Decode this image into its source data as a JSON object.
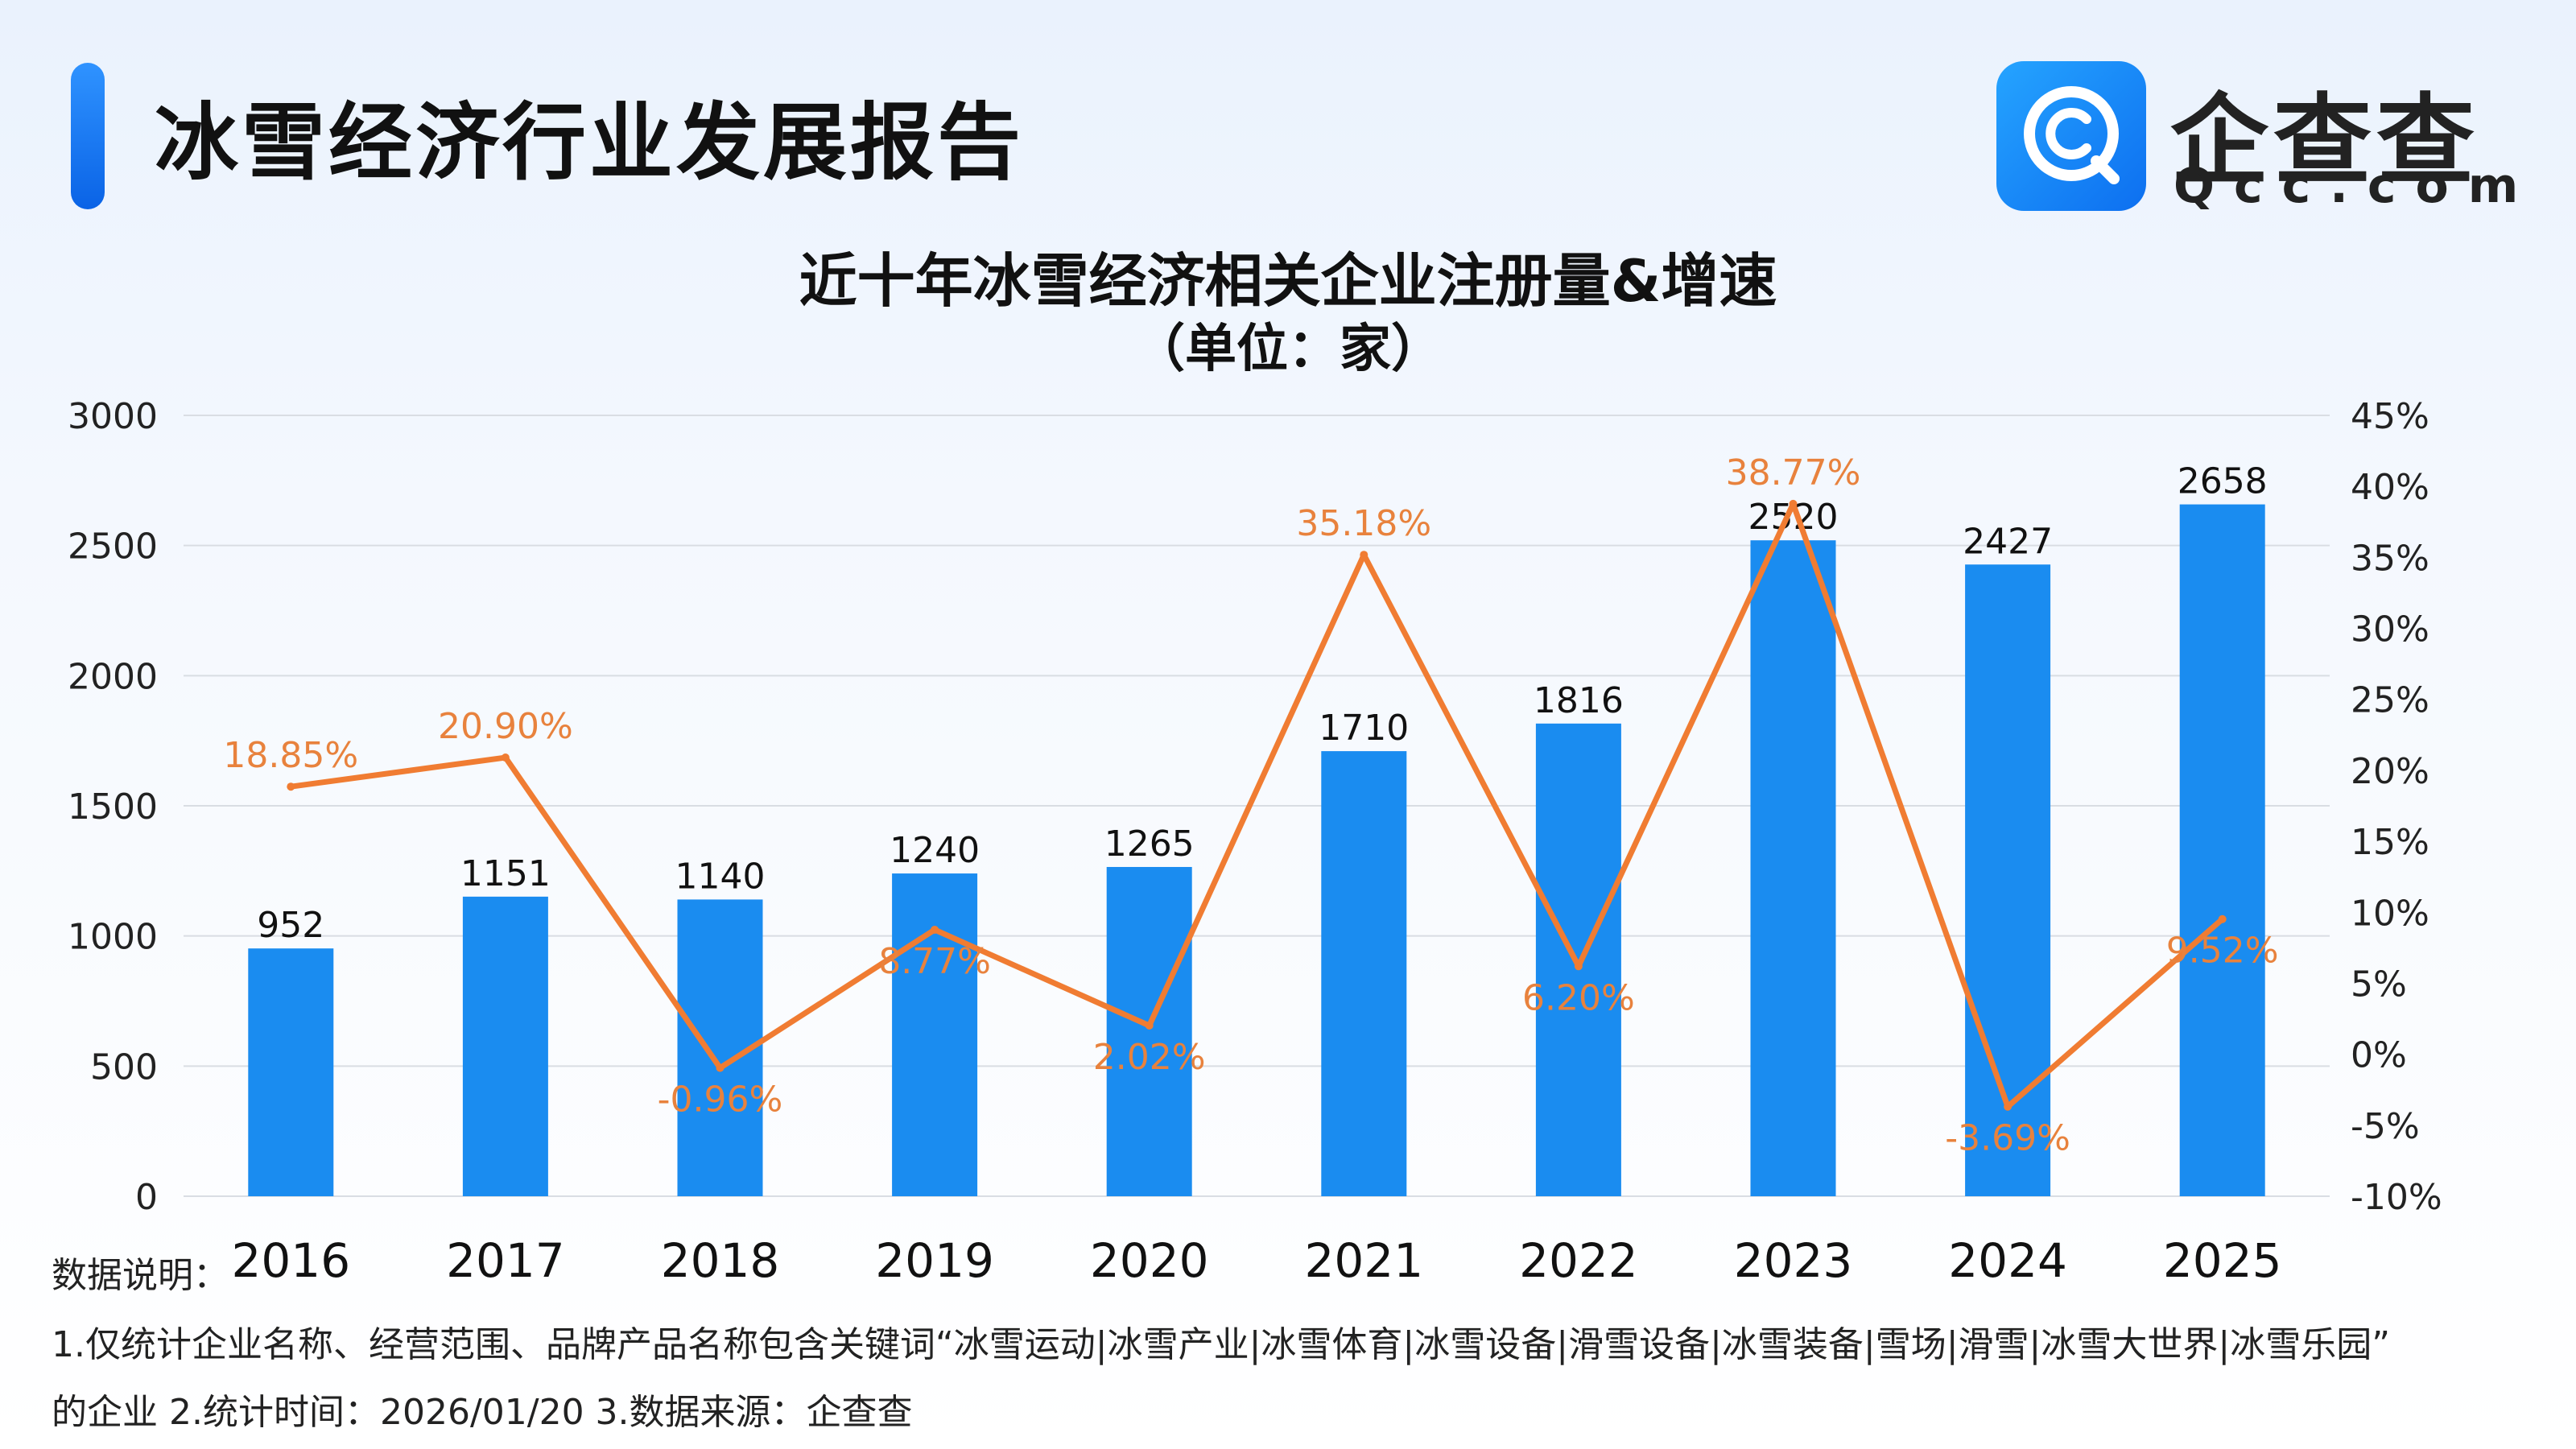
{
  "header": {
    "title": "冰雪经济行业发展报告"
  },
  "brand": {
    "name": "企查查",
    "domain": "Qcc.com",
    "icon": "qcc-logo-icon",
    "color": "#1a8cf5"
  },
  "notes": {
    "label": "数据说明：",
    "line1": "1.仅统计企业名称、经营范围、品牌产品名称包含关键词“冰雪运动|冰雪产业|冰雪体育|冰雪设备|滑雪设备|冰雪装备|雪场|滑雪|冰雪大世界|冰雪乐园”",
    "line2": "的企业   2.统计时间：2026/01/20   3.数据来源：企查查"
  },
  "chart_data": {
    "type": "bar",
    "title": "近十年冰雪经济相关企业注册量&增速",
    "subtitle": "（单位：家）",
    "categories": [
      "2016",
      "2017",
      "2018",
      "2019",
      "2020",
      "2021",
      "2022",
      "2023",
      "2024",
      "2025"
    ],
    "series": [
      {
        "type": "bar",
        "axis": "left",
        "color": "#1a8cf0",
        "values": [
          952,
          1151,
          1140,
          1240,
          1265,
          1710,
          1816,
          2520,
          2427,
          2658
        ],
        "labels": [
          "952",
          "1151",
          "1140",
          "1240",
          "1265",
          "1710",
          "1816",
          "2520",
          "2427",
          "2658"
        ]
      },
      {
        "type": "line",
        "axis": "right",
        "color": "#f07c32",
        "values": [
          18.85,
          20.9,
          -0.96,
          8.77,
          2.02,
          35.18,
          6.2,
          38.77,
          -3.69,
          9.52
        ],
        "labels": [
          "18.85%",
          "20.90%",
          "-0.96%",
          "8.77%",
          "2.02%",
          "35.18%",
          "6.20%",
          "38.77%",
          "-3.69%",
          "9.52%"
        ]
      }
    ],
    "y_left": {
      "ylim": [
        0,
        3000
      ],
      "ticks": [
        0,
        500,
        1000,
        1500,
        2000,
        2500,
        3000
      ],
      "tick_labels": [
        "0",
        "500",
        "1000",
        "1500",
        "2000",
        "2500",
        "3000"
      ]
    },
    "y_right": {
      "ylim": [
        -10,
        45
      ],
      "ticks": [
        -10,
        -5,
        0,
        5,
        10,
        15,
        20,
        25,
        30,
        35,
        40,
        45
      ],
      "tick_labels": [
        "-10%",
        "-5%",
        "0%",
        "5%",
        "10%",
        "15%",
        "20%",
        "25%",
        "30%",
        "35%",
        "40%",
        "45%"
      ]
    },
    "grid": true
  }
}
